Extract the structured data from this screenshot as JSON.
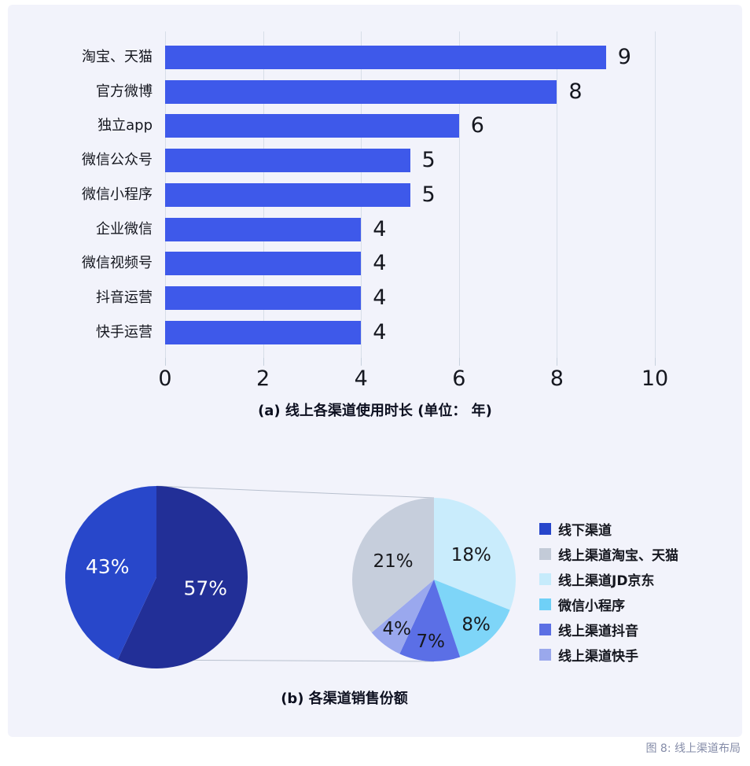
{
  "figure_caption": "图 8: 线上渠道布局",
  "colors": {
    "card_bg": "#F2F3FB",
    "bar": "#3E59EA",
    "grid": "#D7DEE8",
    "connector": "#B8C0CE",
    "text": "#15171F",
    "caption_muted": "#858CA8"
  },
  "chart_data": [
    {
      "type": "bar",
      "orientation": "horizontal",
      "title": "(a) 线上各渠道使用时长 (单位： 年)",
      "categories": [
        "淘宝、天猫",
        "官方微博",
        "独立app",
        "微信公众号",
        "微信小程序",
        "企业微信",
        "微信视频号",
        "抖音运营",
        "快手运营"
      ],
      "values": [
        9,
        8,
        6,
        5,
        5,
        4,
        4,
        4,
        4
      ],
      "xlim": [
        0,
        10
      ],
      "x_ticks": [
        0,
        2,
        4,
        6,
        8,
        10
      ],
      "bar_color": "#3E59EA",
      "grid": true,
      "legend_position": "none"
    },
    {
      "type": "pie",
      "name": "overall-sales-share",
      "title": "(b) 各渠道销售份额",
      "slices": [
        {
          "label": "57%",
          "value": 57,
          "color": "#222F97",
          "text_color": "#FFFFFF"
        },
        {
          "label": "43%",
          "value": 43,
          "color": "#2847CA",
          "text_color": "#FFFFFF"
        }
      ]
    },
    {
      "type": "pie",
      "name": "online-channel-breakdown",
      "slices": [
        {
          "label": "18%",
          "value": 18,
          "color": "#C9ECFC",
          "text_color": "#17181C"
        },
        {
          "label": "8%",
          "value": 8,
          "color": "#7ED5F8",
          "text_color": "#17181C"
        },
        {
          "label": "7%",
          "value": 7,
          "color": "#5B6FE6",
          "text_color": "#17181C"
        },
        {
          "label": "4%",
          "value": 4,
          "color": "#9AA8EE",
          "text_color": "#17181C"
        },
        {
          "label": "21%",
          "value": 21,
          "color": "#C6CEDC",
          "text_color": "#17181C"
        }
      ]
    }
  ],
  "legend": {
    "position": "right",
    "items": [
      {
        "label": "线下渠道",
        "color": "#2746CB"
      },
      {
        "label": "线上渠道淘宝、天猫",
        "color": "#C3CBD8"
      },
      {
        "label": "线上渠道JD京东",
        "color": "#C6EBFB"
      },
      {
        "label": "微信小程序",
        "color": "#6FD0F7"
      },
      {
        "label": "线上渠道抖音",
        "color": "#5C70E4"
      },
      {
        "label": "线上渠道快手",
        "color": "#9AA8EC"
      }
    ]
  }
}
